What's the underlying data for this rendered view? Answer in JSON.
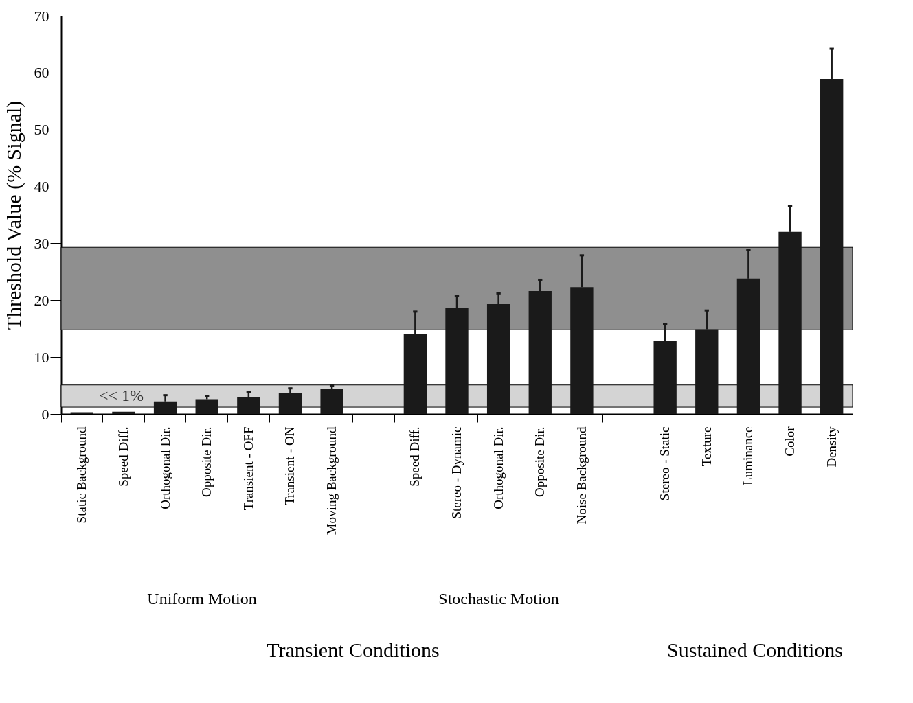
{
  "chart_data": {
    "type": "bar",
    "ylabel": "Threshold Value (% Signal)",
    "categories": [
      "Static Background",
      "Speed Diff.",
      "Orthogonal Dir.",
      "Opposite Dir.",
      "Transient - OFF",
      "Transient - ON",
      "Moving Background",
      null,
      "Speed Diff.",
      "Stereo - Dynamic",
      "Orthogonal Dir.",
      "Opposite Dir.",
      "Noise Background",
      null,
      "Stereo - Static",
      "Texture",
      "Luminance",
      "Color",
      "Density"
    ],
    "values": [
      0.3,
      0.4,
      2.2,
      2.6,
      3.0,
      3.7,
      4.4,
      null,
      14.0,
      18.6,
      19.3,
      21.6,
      22.3,
      null,
      12.8,
      14.9,
      23.8,
      32.0,
      58.9
    ],
    "errors": [
      null,
      null,
      [
        2.2,
        3.3
      ],
      [
        2.6,
        3.2
      ],
      [
        3.0,
        3.8
      ],
      [
        3.7,
        4.5
      ],
      [
        4.4,
        5.0
      ],
      null,
      [
        14.0,
        18.0
      ],
      [
        18.6,
        20.8
      ],
      [
        19.3,
        21.2
      ],
      [
        21.6,
        23.6
      ],
      [
        22.3,
        27.9
      ],
      null,
      [
        12.8,
        15.8
      ],
      [
        14.9,
        18.2
      ],
      [
        23.8,
        28.8
      ],
      [
        32.0,
        36.6
      ],
      [
        58.9,
        64.2
      ]
    ],
    "color": "#1a1a1a",
    "ylim": [
      0,
      70
    ],
    "yticks": [
      0,
      10,
      20,
      30,
      40,
      50,
      60,
      70
    ],
    "bands": [
      {
        "axis": "y",
        "from": 14.8,
        "to": 29.3,
        "label": null,
        "color": "#8f8f8f"
      },
      {
        "axis": "y",
        "from": 1.2,
        "to": 5.1,
        "label": "<< 1%",
        "color": "#d4d4d4"
      }
    ],
    "annotations": [
      "Uniform Motion",
      "Stochastic Motion",
      "Transient Conditions",
      "Sustained Conditions"
    ],
    "grid": false
  }
}
